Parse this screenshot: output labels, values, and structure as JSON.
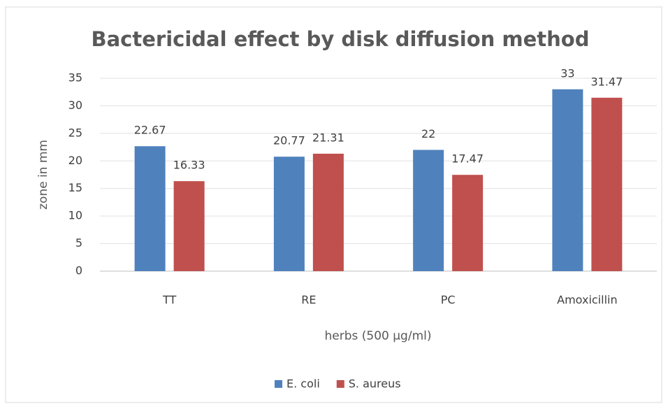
{
  "chart_data": {
    "type": "bar",
    "title": "Bactericidal effect by disk diffusion method",
    "x_label": "herbs (500 µg/ml)",
    "y_label": "zone in mm",
    "categories": [
      "TT",
      "RE",
      "PC",
      "Amoxicillin"
    ],
    "series": [
      {
        "name": "E. coli",
        "color": "#4f81bd",
        "values": [
          22.67,
          20.77,
          22,
          33
        ]
      },
      {
        "name": "S. aureus",
        "color": "#c0504d",
        "values": [
          16.33,
          21.31,
          17.47,
          31.47
        ]
      }
    ],
    "ylim": [
      0,
      35
    ],
    "yticks": [
      0,
      5,
      10,
      15,
      20,
      25,
      30,
      35
    ],
    "grid": true,
    "legend": "bottom"
  }
}
